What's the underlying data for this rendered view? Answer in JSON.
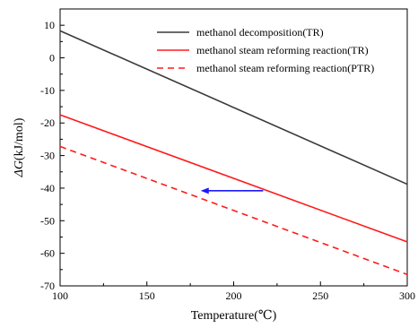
{
  "chart_data": {
    "type": "line",
    "xlabel": "Temperature(℃)",
    "ylabel_italic": "ΔG",
    "ylabel_rest": "(kJ/mol)",
    "xlim": [
      100,
      300
    ],
    "ylim": [
      -70,
      15
    ],
    "xticks": [
      100,
      150,
      200,
      250,
      300
    ],
    "yticks": [
      -70,
      -60,
      -50,
      -40,
      -30,
      -20,
      -10,
      0,
      10
    ],
    "grid": false,
    "legend_position": "top-right",
    "series": [
      {
        "name": "methanol decomposition(TR)",
        "x": [
          100,
          300
        ],
        "y": [
          8.3,
          -38.8
        ],
        "color": "#3a3a3a",
        "dash": "solid"
      },
      {
        "name": "methanol steam reforming reaction(TR)",
        "x": [
          100,
          300
        ],
        "y": [
          -17.5,
          -56.5
        ],
        "color": "#ff1a1a",
        "dash": "solid"
      },
      {
        "name": "methanol steam reforming reaction(PTR)",
        "x": [
          100,
          300
        ],
        "y": [
          -27.2,
          -66.5
        ],
        "color": "#ff1a1a",
        "dash": "dashed"
      }
    ],
    "annotations": [
      {
        "type": "arrow",
        "x_from": 217,
        "x_to": 181,
        "y": -40.8,
        "color": "#1a1aff"
      }
    ]
  }
}
